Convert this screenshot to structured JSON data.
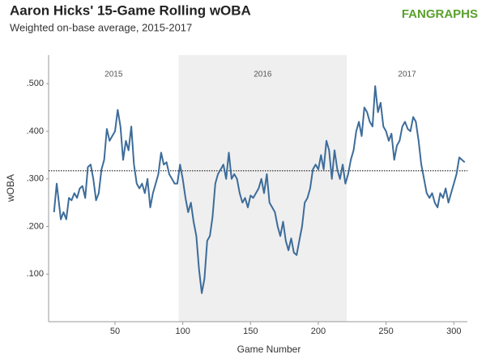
{
  "chart_data": {
    "type": "line",
    "title": "Aaron Hicks' 15-Game Rolling wOBA",
    "subtitle": "Weighted on-base average, 2015-2017",
    "logo": "FANGRAPHS",
    "x_label": "Game Number",
    "y_label": "wOBA",
    "x": [
      5,
      7,
      9,
      10,
      12,
      14,
      16,
      18,
      20,
      22,
      24,
      26,
      28,
      30,
      32,
      34,
      36,
      38,
      40,
      42,
      44,
      46,
      48,
      50,
      52,
      54,
      56,
      58,
      60,
      62,
      64,
      66,
      68,
      70,
      72,
      74,
      76,
      78,
      80,
      82,
      84,
      86,
      88,
      90,
      92,
      94,
      96,
      98,
      100,
      102,
      104,
      106,
      108,
      110,
      112,
      114,
      116,
      118,
      120,
      122,
      124,
      126,
      128,
      130,
      132,
      134,
      136,
      138,
      140,
      142,
      144,
      146,
      148,
      150,
      152,
      154,
      156,
      158,
      160,
      162,
      164,
      166,
      168,
      170,
      172,
      174,
      176,
      178,
      180,
      182,
      184,
      186,
      188,
      190,
      192,
      194,
      196,
      198,
      200,
      202,
      204,
      206,
      208,
      210,
      212,
      214,
      216,
      218,
      220,
      222,
      224,
      226,
      228,
      230,
      232,
      234,
      236,
      238,
      240,
      242,
      244,
      246,
      248,
      250,
      252,
      254,
      256,
      258,
      260,
      262,
      264,
      266,
      268,
      270,
      272,
      274,
      276,
      278,
      280,
      282,
      284,
      286,
      288,
      290,
      292,
      294,
      296,
      298,
      300,
      302,
      304,
      306,
      308
    ],
    "series": [
      {
        "name": "wOBA",
        "color": "#3d6c9a",
        "values": [
          0.23,
          0.29,
          0.24,
          0.215,
          0.23,
          0.215,
          0.26,
          0.255,
          0.27,
          0.26,
          0.28,
          0.285,
          0.26,
          0.325,
          0.33,
          0.3,
          0.255,
          0.27,
          0.32,
          0.34,
          0.405,
          0.38,
          0.39,
          0.4,
          0.445,
          0.41,
          0.34,
          0.38,
          0.36,
          0.41,
          0.33,
          0.29,
          0.28,
          0.29,
          0.27,
          0.3,
          0.24,
          0.27,
          0.29,
          0.31,
          0.355,
          0.33,
          0.335,
          0.31,
          0.3,
          0.29,
          0.29,
          0.33,
          0.3,
          0.26,
          0.23,
          0.25,
          0.21,
          0.18,
          0.11,
          0.06,
          0.09,
          0.17,
          0.18,
          0.22,
          0.29,
          0.31,
          0.32,
          0.33,
          0.3,
          0.355,
          0.3,
          0.31,
          0.3,
          0.27,
          0.25,
          0.26,
          0.24,
          0.265,
          0.26,
          0.27,
          0.28,
          0.3,
          0.27,
          0.31,
          0.25,
          0.24,
          0.23,
          0.2,
          0.18,
          0.21,
          0.17,
          0.15,
          0.175,
          0.145,
          0.14,
          0.17,
          0.2,
          0.25,
          0.26,
          0.28,
          0.32,
          0.33,
          0.32,
          0.35,
          0.32,
          0.38,
          0.36,
          0.3,
          0.36,
          0.32,
          0.3,
          0.33,
          0.29,
          0.31,
          0.34,
          0.36,
          0.4,
          0.42,
          0.39,
          0.45,
          0.44,
          0.42,
          0.41,
          0.495,
          0.44,
          0.46,
          0.41,
          0.4,
          0.38,
          0.395,
          0.34,
          0.37,
          0.38,
          0.41,
          0.42,
          0.405,
          0.4,
          0.43,
          0.42,
          0.38,
          0.33,
          0.3,
          0.27,
          0.26,
          0.27,
          0.25,
          0.24,
          0.27,
          0.26,
          0.28,
          0.25,
          0.27,
          0.29,
          0.31,
          0.345,
          0.34,
          0.335
        ]
      }
    ],
    "xlim": [
      1,
      310
    ],
    "ylim": [
      0,
      0.56
    ],
    "xticks": [
      50,
      100,
      150,
      200,
      250,
      300
    ],
    "yticks": [
      {
        "value": 0.1,
        "label": ".100"
      },
      {
        "value": 0.2,
        "label": ".200"
      },
      {
        "value": 0.3,
        "label": ".300"
      },
      {
        "value": 0.4,
        "label": ".400"
      },
      {
        "value": 0.5,
        "label": ".500"
      }
    ],
    "reference_line": 0.317,
    "periods": [
      {
        "label": "2015",
        "range": [
          1,
          97
        ],
        "shaded": false
      },
      {
        "label": "2016",
        "range": [
          97,
          221
        ],
        "shaded": true
      },
      {
        "label": "2017",
        "range": [
          221,
          310
        ],
        "shaded": false
      }
    ]
  }
}
